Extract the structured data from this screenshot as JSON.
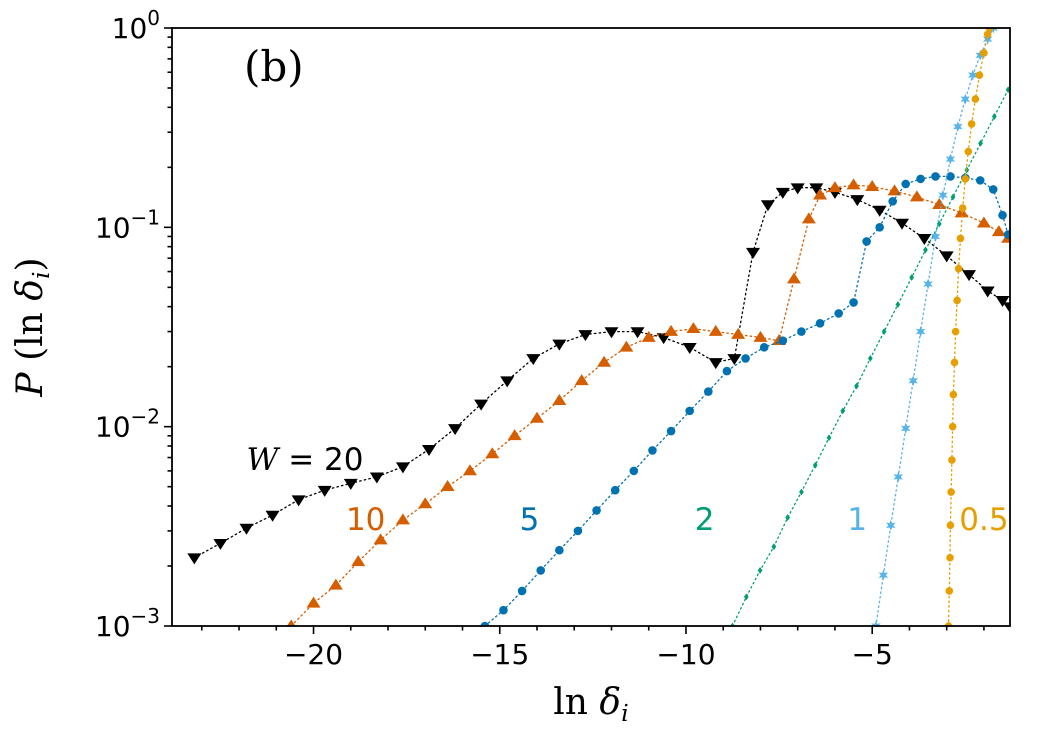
{
  "figure": {
    "panel_label": "(b)",
    "background": "#ffffff"
  },
  "chart_data": {
    "type": "line",
    "title": "",
    "xlabel": {
      "parts": [
        {
          "t": "ln ",
          "i": false
        },
        {
          "t": "δ",
          "i": true
        },
        {
          "t": "i",
          "i": true,
          "sub": true
        }
      ]
    },
    "ylabel": {
      "parts": [
        {
          "t": "P",
          "i": true
        },
        {
          "t": " (ln ",
          "i": false
        },
        {
          "t": "δ",
          "i": true
        },
        {
          "t": "i",
          "i": true,
          "sub": true
        },
        {
          "t": ")",
          "i": false
        }
      ]
    },
    "axis_color": "#000000",
    "x_axis": {
      "min": -23.8,
      "max": -1.3,
      "major_ticks": [
        -20,
        -15,
        -10,
        -5
      ],
      "minor_tick_step": 1
    },
    "y_axis": {
      "scale": "log",
      "min": 0.001,
      "max": 1.0,
      "tick_exponents": [
        0,
        -1,
        -2,
        -3
      ]
    },
    "legend_position": "inline-labels",
    "grid": false,
    "series": [
      {
        "id": "w20",
        "name": "W = 20",
        "color": "#000000",
        "marker": "triangle-down",
        "marker_size": 7,
        "line_style": "dotted",
        "points": [
          [
            -23.2,
            0.0022
          ],
          [
            -22.5,
            0.0026
          ],
          [
            -21.8,
            0.0031
          ],
          [
            -21.1,
            0.0036
          ],
          [
            -20.4,
            0.0043
          ],
          [
            -19.7,
            0.0048
          ],
          [
            -19,
            0.0052
          ],
          [
            -18.3,
            0.0056
          ],
          [
            -17.6,
            0.0063
          ],
          [
            -16.9,
            0.0077
          ],
          [
            -16.2,
            0.0098
          ],
          [
            -15.5,
            0.013
          ],
          [
            -14.8,
            0.017
          ],
          [
            -14.1,
            0.022
          ],
          [
            -13.4,
            0.026
          ],
          [
            -12.7,
            0.029
          ],
          [
            -12,
            0.03
          ],
          [
            -11.3,
            0.03
          ],
          [
            -10.6,
            0.028
          ],
          [
            -9.9,
            0.025
          ],
          [
            -9.2,
            0.021
          ],
          [
            -8.7,
            0.022
          ],
          [
            -8.2,
            0.075
          ],
          [
            -7.8,
            0.13
          ],
          [
            -7.4,
            0.15
          ],
          [
            -7,
            0.158
          ],
          [
            -6.5,
            0.158
          ],
          [
            -6,
            0.15
          ],
          [
            -5.4,
            0.138
          ],
          [
            -4.8,
            0.122
          ],
          [
            -4.2,
            0.105
          ],
          [
            -3.6,
            0.088
          ],
          [
            -3,
            0.072
          ],
          [
            -2.4,
            0.058
          ],
          [
            -1.9,
            0.048
          ],
          [
            -1.5,
            0.043
          ],
          [
            -1.3,
            0.04
          ]
        ]
      },
      {
        "id": "w10",
        "name": "W = 10",
        "color": "#d55e00",
        "marker": "triangle-up",
        "marker_size": 7,
        "line_style": "dotted",
        "points": [
          [
            -20.6,
            0.001
          ],
          [
            -20,
            0.0013
          ],
          [
            -19.4,
            0.0016
          ],
          [
            -18.8,
            0.0021
          ],
          [
            -18.2,
            0.0027
          ],
          [
            -17.6,
            0.0034
          ],
          [
            -17,
            0.0041
          ],
          [
            -16.4,
            0.005
          ],
          [
            -15.8,
            0.006
          ],
          [
            -15.2,
            0.0073
          ],
          [
            -14.6,
            0.009
          ],
          [
            -14,
            0.011
          ],
          [
            -13.4,
            0.0135
          ],
          [
            -12.8,
            0.017
          ],
          [
            -12.2,
            0.021
          ],
          [
            -11.6,
            0.025
          ],
          [
            -11,
            0.028
          ],
          [
            -10.4,
            0.03
          ],
          [
            -9.8,
            0.031
          ],
          [
            -9.2,
            0.03
          ],
          [
            -8.6,
            0.029
          ],
          [
            -8,
            0.028
          ],
          [
            -7.5,
            0.027
          ],
          [
            -7.1,
            0.055
          ],
          [
            -6.7,
            0.11
          ],
          [
            -6.4,
            0.145
          ],
          [
            -6,
            0.158
          ],
          [
            -5.5,
            0.163
          ],
          [
            -5,
            0.16
          ],
          [
            -4.4,
            0.152
          ],
          [
            -3.8,
            0.142
          ],
          [
            -3.2,
            0.13
          ],
          [
            -2.6,
            0.118
          ],
          [
            -2,
            0.105
          ],
          [
            -1.6,
            0.095
          ],
          [
            -1.35,
            0.088
          ]
        ]
      },
      {
        "id": "w5",
        "name": "W = 5",
        "color": "#0072b2",
        "marker": "circle",
        "marker_size": 4.3,
        "line_style": "dotted",
        "points": [
          [
            -15.4,
            0.001
          ],
          [
            -14.9,
            0.0012
          ],
          [
            -14.4,
            0.0015
          ],
          [
            -13.9,
            0.0019
          ],
          [
            -13.4,
            0.0024
          ],
          [
            -12.9,
            0.003
          ],
          [
            -12.4,
            0.0038
          ],
          [
            -11.9,
            0.0048
          ],
          [
            -11.4,
            0.006
          ],
          [
            -10.9,
            0.0076
          ],
          [
            -10.4,
            0.0095
          ],
          [
            -9.9,
            0.012
          ],
          [
            -9.4,
            0.015
          ],
          [
            -8.9,
            0.019
          ],
          [
            -8.4,
            0.022
          ],
          [
            -7.9,
            0.025
          ],
          [
            -7.4,
            0.027
          ],
          [
            -6.9,
            0.03
          ],
          [
            -6.4,
            0.033
          ],
          [
            -5.9,
            0.037
          ],
          [
            -5.5,
            0.042
          ],
          [
            -5.15,
            0.085
          ],
          [
            -4.8,
            0.1
          ],
          [
            -4.45,
            0.135
          ],
          [
            -4.1,
            0.165
          ],
          [
            -3.7,
            0.175
          ],
          [
            -3.3,
            0.18
          ],
          [
            -2.9,
            0.18
          ],
          [
            -2.5,
            0.177
          ],
          [
            -2.1,
            0.172
          ],
          [
            -1.75,
            0.155
          ],
          [
            -1.5,
            0.115
          ],
          [
            -1.35,
            0.092
          ]
        ]
      },
      {
        "id": "w2",
        "name": "W = 2",
        "color": "#009e73",
        "marker": "diamond",
        "marker_size": 3.4,
        "line_style": "dotted",
        "points": [
          [
            -8.75,
            0.001
          ],
          [
            -8.38,
            0.0014
          ],
          [
            -8.01,
            0.0019
          ],
          [
            -7.64,
            0.0025
          ],
          [
            -7.27,
            0.0035
          ],
          [
            -6.9,
            0.0047
          ],
          [
            -6.53,
            0.0064
          ],
          [
            -6.16,
            0.0088
          ],
          [
            -5.79,
            0.012
          ],
          [
            -5.42,
            0.016
          ],
          [
            -5.05,
            0.022
          ],
          [
            -4.68,
            0.03
          ],
          [
            -4.31,
            0.041
          ],
          [
            -3.94,
            0.056
          ],
          [
            -3.57,
            0.077
          ],
          [
            -3.2,
            0.104
          ],
          [
            -2.83,
            0.142
          ],
          [
            -2.46,
            0.194
          ],
          [
            -2.09,
            0.264
          ],
          [
            -1.72,
            0.36
          ],
          [
            -1.35,
            0.49
          ]
        ]
      },
      {
        "id": "w1",
        "name": "W = 1",
        "color": "#56b4e9",
        "marker": "star",
        "marker_size": 5.5,
        "line_style": "dotted",
        "points": [
          [
            -4.9,
            0.001
          ],
          [
            -4.7,
            0.0018
          ],
          [
            -4.5,
            0.0032
          ],
          [
            -4.3,
            0.0056
          ],
          [
            -4.1,
            0.0098
          ],
          [
            -3.9,
            0.017
          ],
          [
            -3.7,
            0.03
          ],
          [
            -3.5,
            0.052
          ],
          [
            -3.3,
            0.09
          ],
          [
            -3.1,
            0.145
          ],
          [
            -2.9,
            0.22
          ],
          [
            -2.7,
            0.32
          ],
          [
            -2.5,
            0.44
          ],
          [
            -2.3,
            0.58
          ],
          [
            -2.1,
            0.73
          ],
          [
            -1.9,
            0.88
          ],
          [
            -1.75,
            1.0
          ]
        ]
      },
      {
        "id": "w05",
        "name": "W = 0.5",
        "color": "#e69f00",
        "marker": "circle",
        "marker_size": 3.8,
        "line_style": "dotted",
        "points": [
          [
            -2.95,
            0.001
          ],
          [
            -2.93,
            0.0015
          ],
          [
            -2.91,
            0.0022
          ],
          [
            -2.9,
            0.0032
          ],
          [
            -2.88,
            0.0047
          ],
          [
            -2.86,
            0.0068
          ],
          [
            -2.84,
            0.01
          ],
          [
            -2.82,
            0.0145
          ],
          [
            -2.79,
            0.021
          ],
          [
            -2.76,
            0.03
          ],
          [
            -2.72,
            0.043
          ],
          [
            -2.68,
            0.062
          ],
          [
            -2.63,
            0.088
          ],
          [
            -2.57,
            0.125
          ],
          [
            -2.5,
            0.175
          ],
          [
            -2.42,
            0.24
          ],
          [
            -2.33,
            0.33
          ],
          [
            -2.23,
            0.44
          ],
          [
            -2.12,
            0.58
          ],
          [
            -2.0,
            0.75
          ],
          [
            -1.9,
            0.93
          ],
          [
            -1.85,
            1.0
          ]
        ]
      }
    ],
    "labels": [
      {
        "id": "label-w20",
        "x": -21.8,
        "y": 0.0068,
        "color": "#000000",
        "anchor": "start",
        "parts": [
          {
            "t": "W ",
            "i": true
          },
          {
            "t": "= 20",
            "i": false
          }
        ]
      },
      {
        "id": "label-w10",
        "x": -18.6,
        "y": 0.0034,
        "color": "#d55e00",
        "anchor": "middle",
        "parts": [
          {
            "t": "10",
            "i": false
          }
        ]
      },
      {
        "id": "label-w5",
        "x": -14.2,
        "y": 0.0034,
        "color": "#0072b2",
        "anchor": "middle",
        "parts": [
          {
            "t": "5",
            "i": false
          }
        ]
      },
      {
        "id": "label-w2",
        "x": -9.5,
        "y": 0.0034,
        "color": "#009e73",
        "anchor": "middle",
        "parts": [
          {
            "t": "2",
            "i": false
          }
        ]
      },
      {
        "id": "label-w1",
        "x": -5.4,
        "y": 0.0034,
        "color": "#56b4e9",
        "anchor": "middle",
        "parts": [
          {
            "t": "1",
            "i": false
          }
        ]
      },
      {
        "id": "label-w05",
        "x": -2.0,
        "y": 0.0034,
        "color": "#e69f00",
        "anchor": "middle",
        "parts": [
          {
            "t": "0.5",
            "i": false
          }
        ]
      }
    ]
  }
}
